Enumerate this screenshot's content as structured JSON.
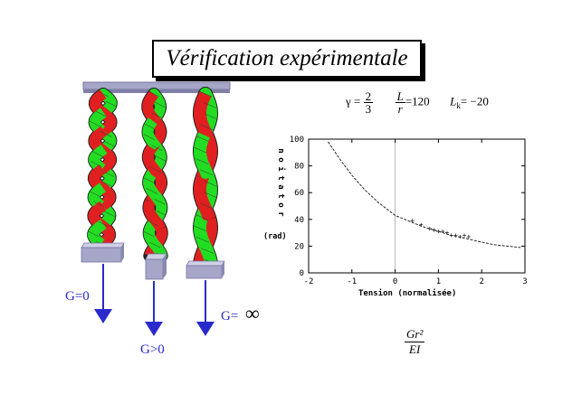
{
  "title": "Vérification expérimentale",
  "params": {
    "gamma_symbol": "γ",
    "gamma_num": "2",
    "gamma_den": "3",
    "l_num": "L",
    "l_den": "r",
    "l_value": "=120",
    "lk_text": "L",
    "lk_sub": "k",
    "lk_value": "= −20"
  },
  "labels": {
    "g_zero": "G=0",
    "g_pos": "G>0",
    "g_inf": "G=",
    "inf_symbol": "∞"
  },
  "colors": {
    "strand_red": "#e02020",
    "strand_green": "#22dd22",
    "plate": "#a6a6c8",
    "arrow": "#2a2acc"
  },
  "chart_data": {
    "type": "scatter",
    "xlabel": "Tension (normalisée)",
    "ylabel_vertical": "rotation",
    "ylabel_unit": "(rad)",
    "x_fraction_num": "Gr²",
    "x_fraction_den": "EI",
    "xlim": [
      -2,
      3
    ],
    "ylim": [
      0,
      100
    ],
    "xticks": [
      "-2",
      "-1",
      "0",
      "1",
      "2",
      "3"
    ],
    "yticks": [
      "0",
      "20",
      "40",
      "60",
      "80",
      "100"
    ],
    "zero_line_x": 0,
    "curve": {
      "x": [
        -1.55,
        -1.3,
        -1.0,
        -0.7,
        -0.4,
        -0.2,
        0.0,
        0.3,
        0.6,
        1.0,
        1.3,
        1.6,
        2.0,
        2.3,
        2.6,
        2.9
      ],
      "y": [
        98,
        86,
        73,
        62,
        53,
        48,
        43,
        39,
        35,
        31,
        28,
        26,
        23,
        21,
        20,
        19
      ]
    },
    "points": {
      "x": [
        0.4,
        0.6,
        0.8,
        0.9,
        1.0,
        1.1,
        1.2,
        1.3,
        1.4,
        1.5,
        1.6,
        1.7
      ],
      "y": [
        39,
        36,
        33,
        32,
        31,
        31,
        30,
        28,
        28,
        27,
        28,
        27
      ]
    }
  }
}
